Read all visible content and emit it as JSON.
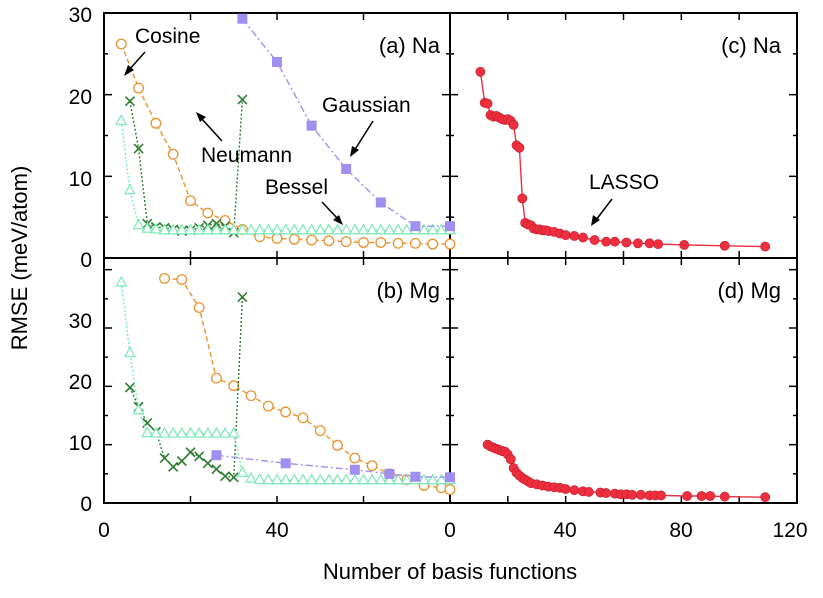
{
  "figure": {
    "xlabel": "Number of basis functions",
    "ylabel": "RMSE (meV/atom)"
  },
  "chart_data": [
    {
      "type": "line",
      "panel": "a",
      "title": "(a) Na",
      "xlim": [
        0,
        80
      ],
      "ylim": [
        0,
        30
      ],
      "xticks": [
        0,
        40
      ],
      "yticks": [
        0,
        10,
        20,
        30
      ],
      "series": [
        {
          "name": "Cosine",
          "color": "#e8932f",
          "marker": "circle",
          "style": "dashed",
          "x": [
            4,
            8,
            12,
            16,
            20,
            24,
            28,
            32,
            36,
            40,
            44,
            48,
            52,
            56,
            60,
            64,
            68,
            72,
            76,
            80
          ],
          "y": [
            26.2,
            20.8,
            16.5,
            12.7,
            7.0,
            5.5,
            4.6,
            3.5,
            2.6,
            2.4,
            2.3,
            2.2,
            2.1,
            2.0,
            1.9,
            1.9,
            1.8,
            1.8,
            1.7,
            1.7
          ]
        },
        {
          "name": "Neumann",
          "color": "#2e7d32",
          "marker": "cross",
          "style": "dotted",
          "x": [
            6,
            8,
            10,
            12,
            14,
            16,
            18,
            20,
            22,
            24,
            26,
            28,
            30,
            32
          ],
          "y": [
            19.2,
            13.4,
            4.2,
            3.8,
            3.7,
            3.5,
            3.3,
            3.4,
            3.7,
            4.0,
            4.2,
            3.9,
            3.1,
            19.4
          ]
        },
        {
          "name": "Bessel",
          "color": "#7be8b6",
          "marker": "triangle",
          "style": "dotted",
          "x": [
            4,
            6,
            8,
            10,
            12,
            14,
            16,
            18,
            20,
            22,
            24,
            26,
            28,
            30,
            32,
            34,
            36,
            38,
            40,
            42,
            44,
            46,
            48,
            50,
            52,
            54,
            56,
            58,
            60,
            62,
            64,
            66,
            68,
            70,
            72,
            74,
            76,
            78,
            80
          ],
          "y": [
            16.8,
            8.3,
            4.0,
            3.6,
            3.5,
            3.4,
            3.4,
            3.4,
            3.4,
            3.4,
            3.4,
            3.4,
            3.4,
            3.4,
            3.4,
            3.4,
            3.4,
            3.4,
            3.4,
            3.4,
            3.4,
            3.4,
            3.4,
            3.4,
            3.4,
            3.4,
            3.4,
            3.4,
            3.4,
            3.4,
            3.4,
            3.4,
            3.4,
            3.4,
            3.4,
            3.4,
            3.4,
            3.4,
            3.4
          ]
        },
        {
          "name": "Gaussian",
          "color": "#9f8ff0",
          "marker": "square",
          "style": "dashdot",
          "x": [
            32,
            40,
            48,
            56,
            64,
            72,
            80
          ],
          "y": [
            29.3,
            24.0,
            16.2,
            10.9,
            6.8,
            3.9,
            3.9
          ]
        }
      ],
      "annotations": [
        "Cosine",
        "Neumann",
        "Gaussian",
        "Bessel"
      ]
    },
    {
      "type": "line",
      "panel": "b",
      "title": "(b) Mg",
      "xlim": [
        0,
        80
      ],
      "ylim": [
        0,
        42
      ],
      "xticks": [
        0,
        40
      ],
      "yticks": [
        0,
        10,
        20,
        30
      ],
      "series": [
        {
          "name": "Cosine",
          "color": "#e8932f",
          "marker": "circle",
          "style": "dashed",
          "x": [
            14,
            18,
            22,
            26,
            30,
            34,
            38,
            42,
            46,
            50,
            54,
            58,
            62,
            66,
            70,
            74,
            78,
            80
          ],
          "y": [
            38.5,
            38.3,
            33.5,
            21.4,
            20.1,
            18.4,
            16.6,
            15.6,
            14.6,
            12.4,
            9.9,
            7.7,
            6.4,
            5.0,
            4.0,
            3.0,
            2.6,
            2.3
          ]
        },
        {
          "name": "Neumann",
          "color": "#2e7d32",
          "marker": "cross",
          "style": "dotted",
          "x": [
            6,
            8,
            10,
            12,
            14,
            16,
            18,
            20,
            22,
            24,
            26,
            28,
            30,
            32
          ],
          "y": [
            19.8,
            16.5,
            13.7,
            12.2,
            7.7,
            6.2,
            7.2,
            8.7,
            8.0,
            6.8,
            5.8,
            4.6,
            4.4,
            35.3
          ]
        },
        {
          "name": "Bessel",
          "color": "#7be8b6",
          "marker": "triangle",
          "style": "dotted",
          "x": [
            4,
            6,
            8,
            10,
            12,
            14,
            16,
            18,
            20,
            22,
            24,
            26,
            28,
            30,
            32,
            34,
            36,
            38,
            40,
            42,
            44,
            46,
            48,
            50,
            52,
            54,
            56,
            58,
            60,
            62,
            64,
            66,
            68,
            70,
            72,
            74,
            76,
            78,
            80
          ],
          "y": [
            37.8,
            25.7,
            15.9,
            12.0,
            11.9,
            11.9,
            11.9,
            11.9,
            11.9,
            11.9,
            11.9,
            11.9,
            11.9,
            11.9,
            5.2,
            4.2,
            4.0,
            3.9,
            3.9,
            3.9,
            3.9,
            3.9,
            3.9,
            3.9,
            3.9,
            3.9,
            3.9,
            3.9,
            3.9,
            3.9,
            3.9,
            3.9,
            3.9,
            3.9,
            3.9,
            3.9,
            3.9,
            3.9,
            3.9
          ]
        },
        {
          "name": "Gaussian",
          "color": "#9f8ff0",
          "marker": "square",
          "style": "dashdot",
          "x": [
            26,
            42,
            58,
            66,
            72,
            80
          ],
          "y": [
            8.2,
            6.8,
            5.7,
            5.0,
            4.5,
            4.4
          ]
        }
      ]
    },
    {
      "type": "line",
      "panel": "c",
      "title": "(c) Na",
      "xlim": [
        0,
        120
      ],
      "ylim": [
        0,
        30
      ],
      "xticks": [
        40,
        80,
        120
      ],
      "series": [
        {
          "name": "LASSO",
          "color": "#ee2f3f",
          "marker": "filled-circle",
          "style": "solid",
          "x": [
            10.5,
            12,
            13,
            14,
            15,
            16,
            17,
            18,
            19,
            20,
            21,
            22,
            23,
            24,
            25,
            26,
            27,
            28,
            29,
            30,
            31,
            32,
            33,
            34,
            36,
            38,
            40,
            43,
            46,
            50,
            54,
            57,
            61,
            65,
            69,
            72,
            81,
            95,
            109
          ],
          "y": [
            22.8,
            19.0,
            18.9,
            17.5,
            17.3,
            17.4,
            17.2,
            17.0,
            16.9,
            17.0,
            16.8,
            16.3,
            13.8,
            13.5,
            7.3,
            4.3,
            4.1,
            4.0,
            3.6,
            3.5,
            3.5,
            3.4,
            3.4,
            3.3,
            3.2,
            3.0,
            2.8,
            2.7,
            2.5,
            2.2,
            2.0,
            2.0,
            1.9,
            1.8,
            1.8,
            1.7,
            1.6,
            1.5,
            1.4
          ]
        }
      ],
      "annotations": [
        "LASSO"
      ]
    },
    {
      "type": "line",
      "panel": "d",
      "title": "(d) Mg",
      "xlim": [
        0,
        120
      ],
      "ylim": [
        0,
        42
      ],
      "xticks": [
        40,
        80,
        120
      ],
      "series": [
        {
          "name": "LASSO",
          "color": "#ee2f3f",
          "marker": "filled-circle",
          "style": "solid",
          "x": [
            13,
            14,
            15,
            16,
            17,
            18,
            19,
            20,
            21,
            22,
            23,
            24,
            25,
            26,
            27,
            28,
            30,
            32,
            34,
            36,
            38,
            40,
            43,
            46,
            48,
            52,
            54,
            57,
            59,
            61,
            63,
            66,
            69,
            71,
            73,
            82,
            87,
            90,
            95,
            109
          ],
          "y": [
            10.0,
            9.7,
            9.5,
            9.3,
            9.1,
            8.9,
            8.8,
            8.3,
            7.5,
            6.0,
            5.2,
            4.7,
            4.3,
            4.0,
            3.7,
            3.4,
            3.2,
            3.0,
            2.8,
            2.7,
            2.6,
            2.4,
            2.2,
            2.0,
            1.9,
            1.8,
            1.7,
            1.6,
            1.5,
            1.5,
            1.4,
            1.4,
            1.3,
            1.3,
            1.3,
            1.2,
            1.2,
            1.2,
            1.1,
            1.0
          ]
        }
      ]
    }
  ]
}
